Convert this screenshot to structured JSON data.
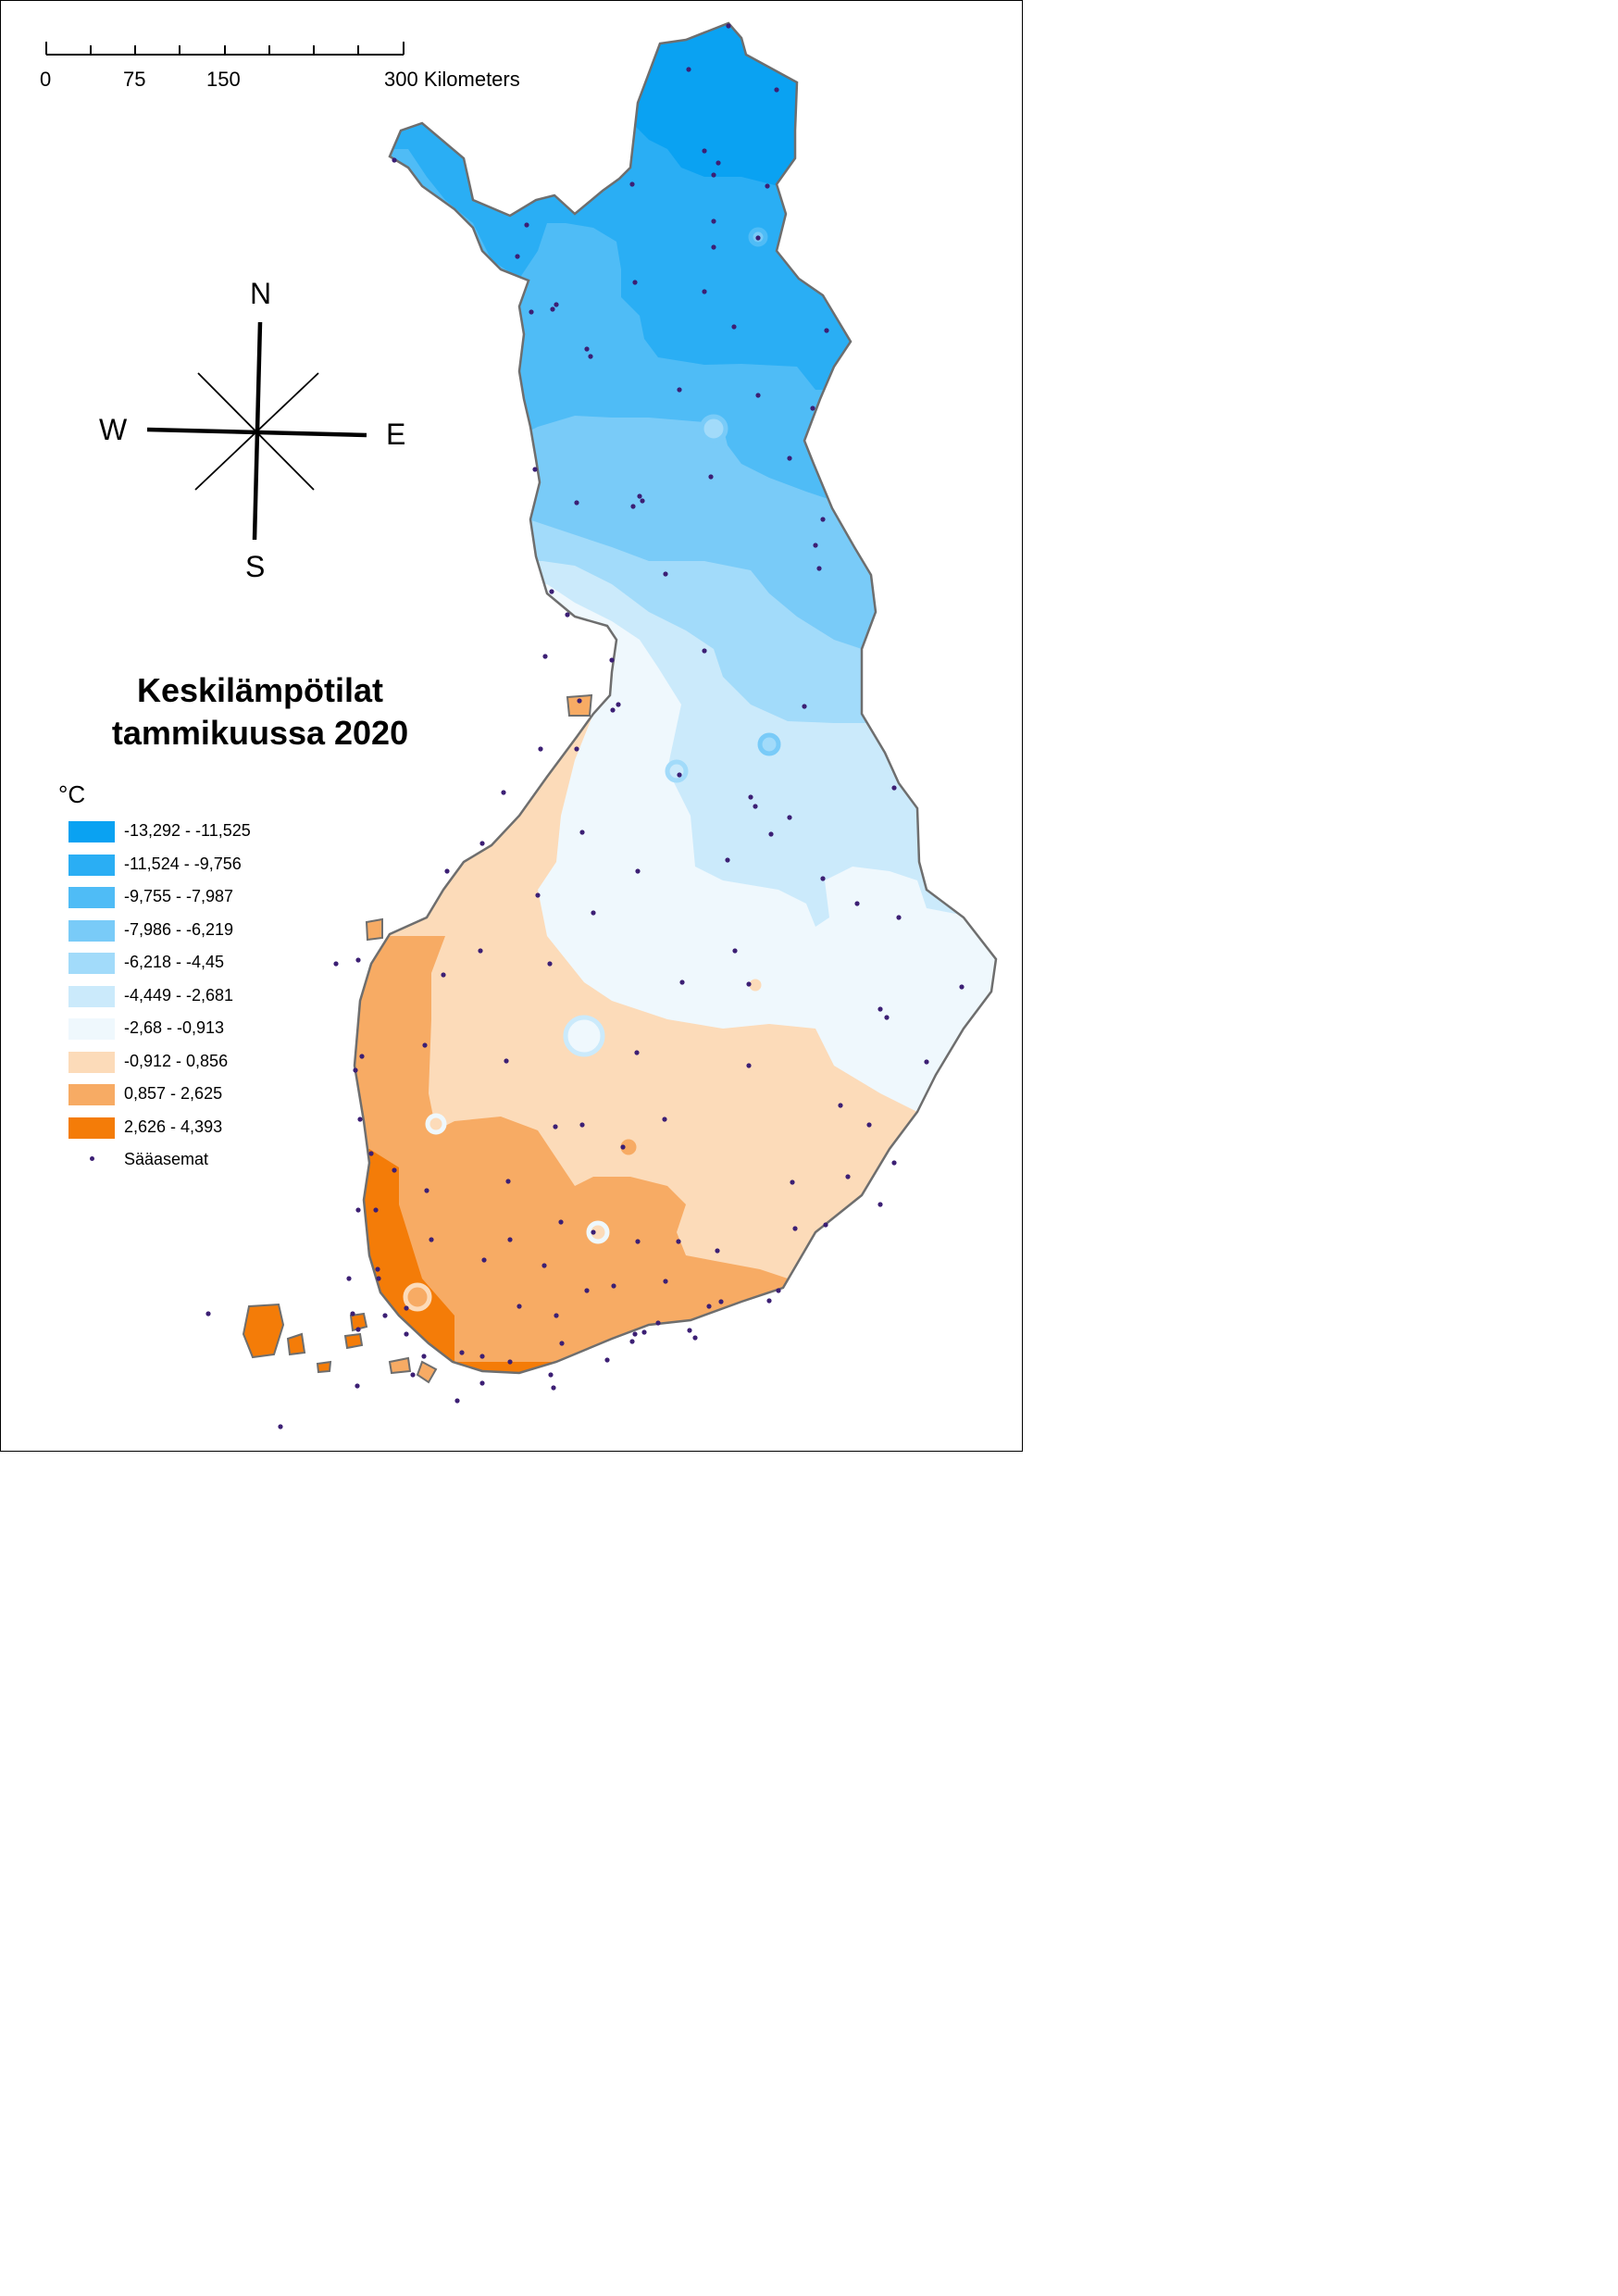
{
  "scalebar": {
    "labels": [
      "0",
      "75",
      "150",
      "300 Kilometers"
    ]
  },
  "compass": {
    "n": "N",
    "s": "S",
    "e": "E",
    "w": "W"
  },
  "title": {
    "line1": "Keskilämpötilat",
    "line2": "tammikuussa 2020"
  },
  "legend": {
    "unit": "°C",
    "classes": [
      {
        "label": "-13,292 - -11,525",
        "color": "#0aa2f2"
      },
      {
        "label": "-11,524 - -9,756",
        "color": "#2aaef4"
      },
      {
        "label": "-9,755 - -7,987",
        "color": "#4fbcf6"
      },
      {
        "label": "-7,986 - -6,219",
        "color": "#79cbf8"
      },
      {
        "label": "-6,218 - -4,45",
        "color": "#a2dbfa"
      },
      {
        "label": "-4,449 - -2,681",
        "color": "#cbeafb"
      },
      {
        "label": "-2,68 - -0,913",
        "color": "#eff8fd"
      },
      {
        "label": "-0,912 - 0,856",
        "color": "#fcdbb9"
      },
      {
        "label": "0,857 - 2,625",
        "color": "#f7ab64"
      },
      {
        "label": "2,626 - 4,393",
        "color": "#f47c08"
      }
    ],
    "stations_label": "Sääasemat",
    "station_color": "#3c1f74"
  },
  "map": {
    "border_color": "#6e6e6e"
  }
}
